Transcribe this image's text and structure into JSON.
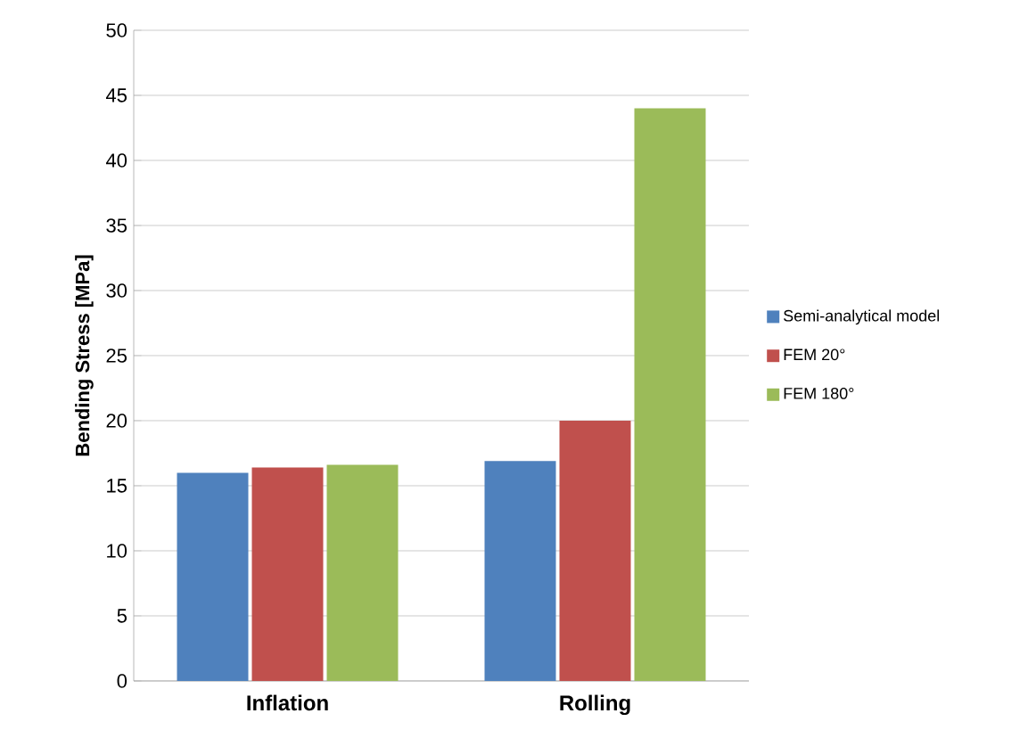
{
  "chart_data": {
    "type": "bar",
    "ylabel": "Bending Stress  [MPa]",
    "categories": [
      "Inflation",
      "Rolling"
    ],
    "series": [
      {
        "name": "Semi-analytical model",
        "color": "#4f81bd",
        "values": [
          16.0,
          16.9
        ]
      },
      {
        "name": "FEM 20°",
        "color": "#c0504d",
        "values": [
          16.4,
          20.0
        ]
      },
      {
        "name": "FEM 180°",
        "color": "#9bbb59",
        "values": [
          16.6,
          44.0
        ]
      }
    ],
    "ylim": [
      0,
      50
    ],
    "yticks": [
      0,
      5,
      10,
      15,
      20,
      25,
      30,
      35,
      40,
      45,
      50
    ],
    "grid": "y",
    "legend": "right"
  }
}
